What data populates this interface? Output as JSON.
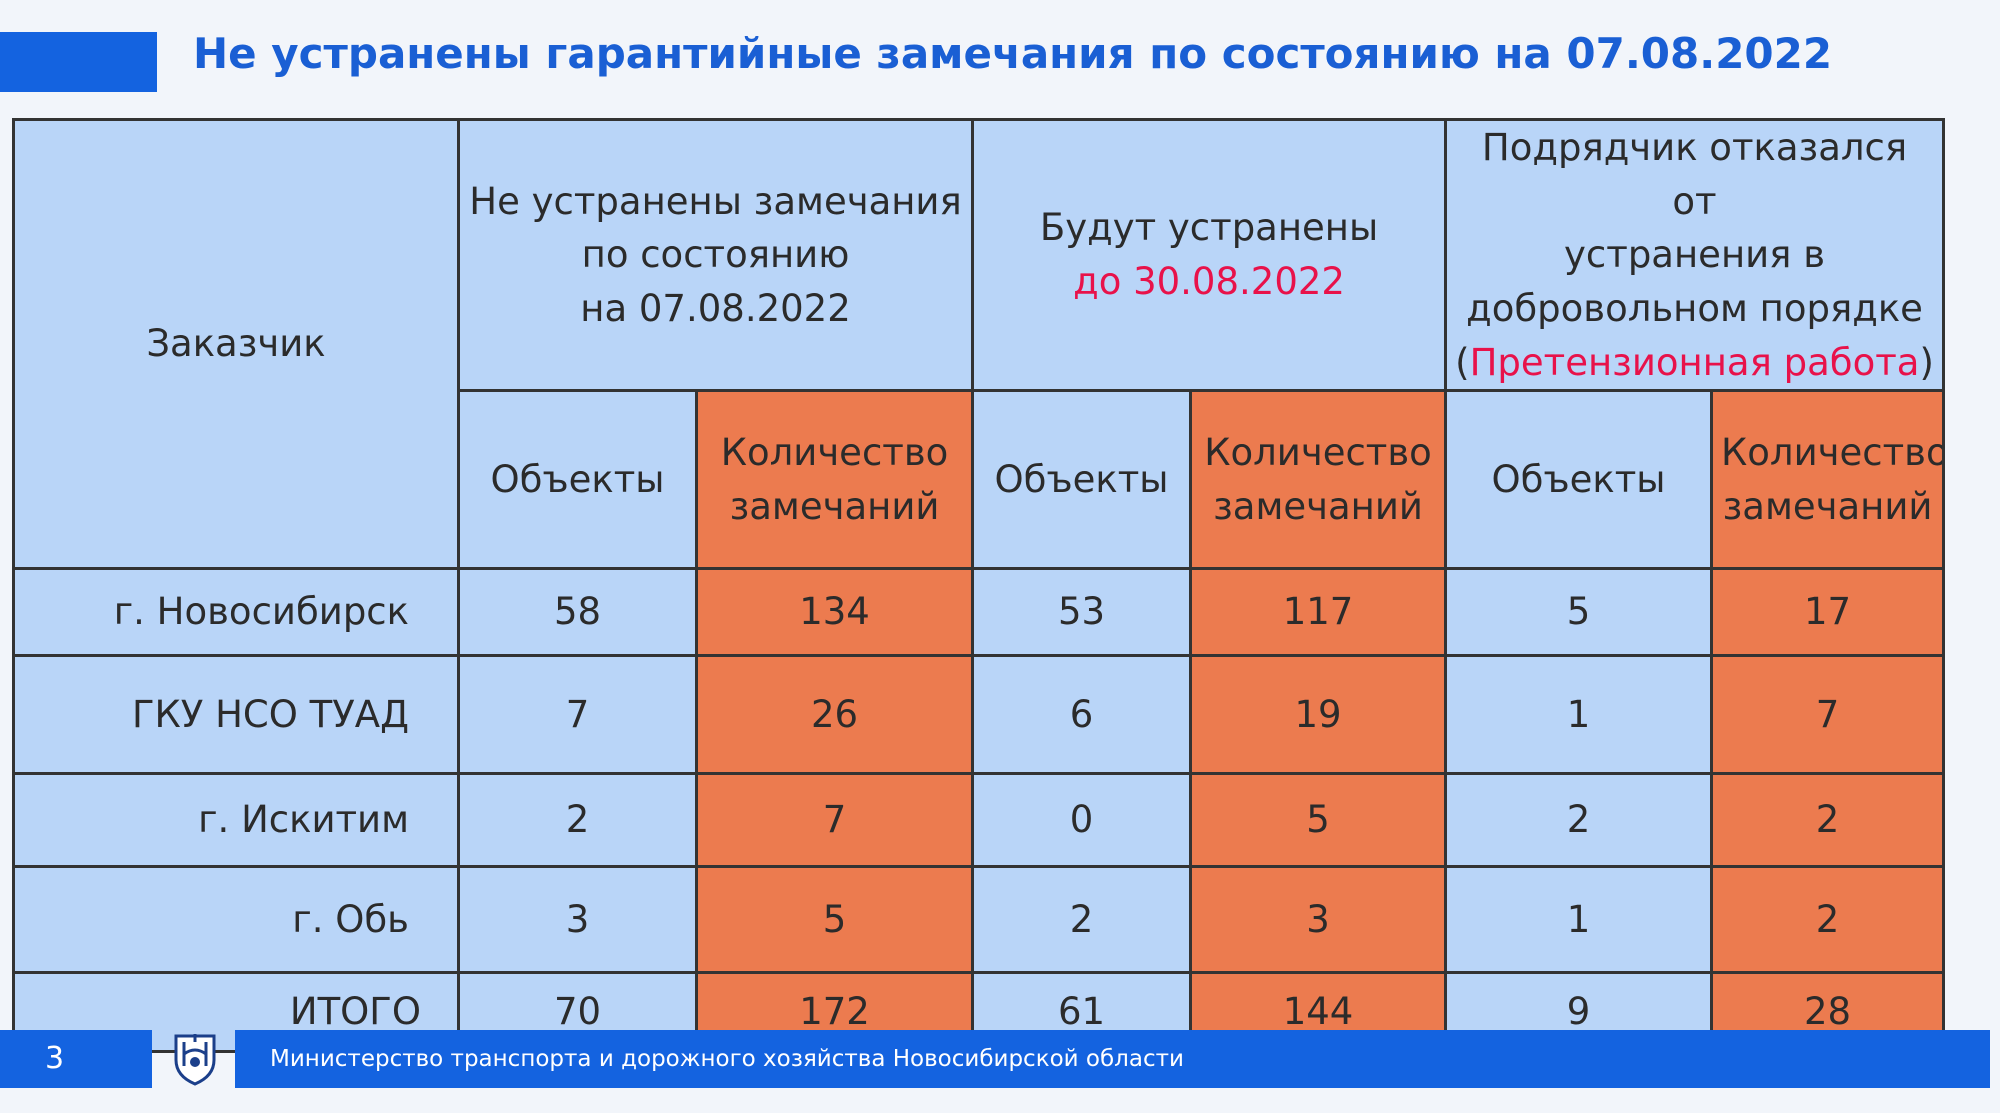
{
  "title": "Не устранены гарантийные замечания по состоянию на 07.08.2022",
  "table": {
    "customer_header": "Заказчик",
    "group1": {
      "line1": "Не устранены замечания",
      "line2": "по состоянию",
      "line3": "на 07.08.2022"
    },
    "group2": {
      "line1": "Будут устранены",
      "line2": "до 30.08.2022"
    },
    "group3": {
      "line1": "Подрядчик отказался от",
      "line2": "устранения в",
      "line3": "добровольном порядке",
      "open_paren": "(",
      "highlight": "Претензионная работа",
      "close_paren": ")"
    },
    "sub_headers": {
      "objects": "Объекты",
      "count_line1": "Количество",
      "count_line2": "замечаний"
    },
    "rows": [
      {
        "customer": "г. Новосибирск",
        "values": [
          "58",
          "134",
          "53",
          "117",
          "5",
          "17"
        ]
      },
      {
        "customer": "ГКУ НСО ТУАД",
        "values": [
          "7",
          "26",
          "6",
          "19",
          "1",
          "7"
        ]
      },
      {
        "customer": "г. Искитим",
        "values": [
          "2",
          "7",
          "0",
          "5",
          "2",
          "2"
        ]
      },
      {
        "customer": "г. Обь",
        "values": [
          "3",
          "5",
          "2",
          "3",
          "1",
          "2"
        ]
      },
      {
        "customer": "ИТОГО",
        "values": [
          "70",
          "172",
          "61",
          "144",
          "9",
          "28"
        ]
      }
    ]
  },
  "footer": {
    "page_number": "3",
    "ministry": "Министерство транспорта и дорожного хозяйства Новосибирской области",
    "emblem_icon": "coat-of-arms-icon"
  },
  "colors": {
    "brand_blue": "#1463e0",
    "cell_blue": "#b9d5f8",
    "cell_orange": "#ec7b4f",
    "highlight_red": "#e8124a"
  }
}
